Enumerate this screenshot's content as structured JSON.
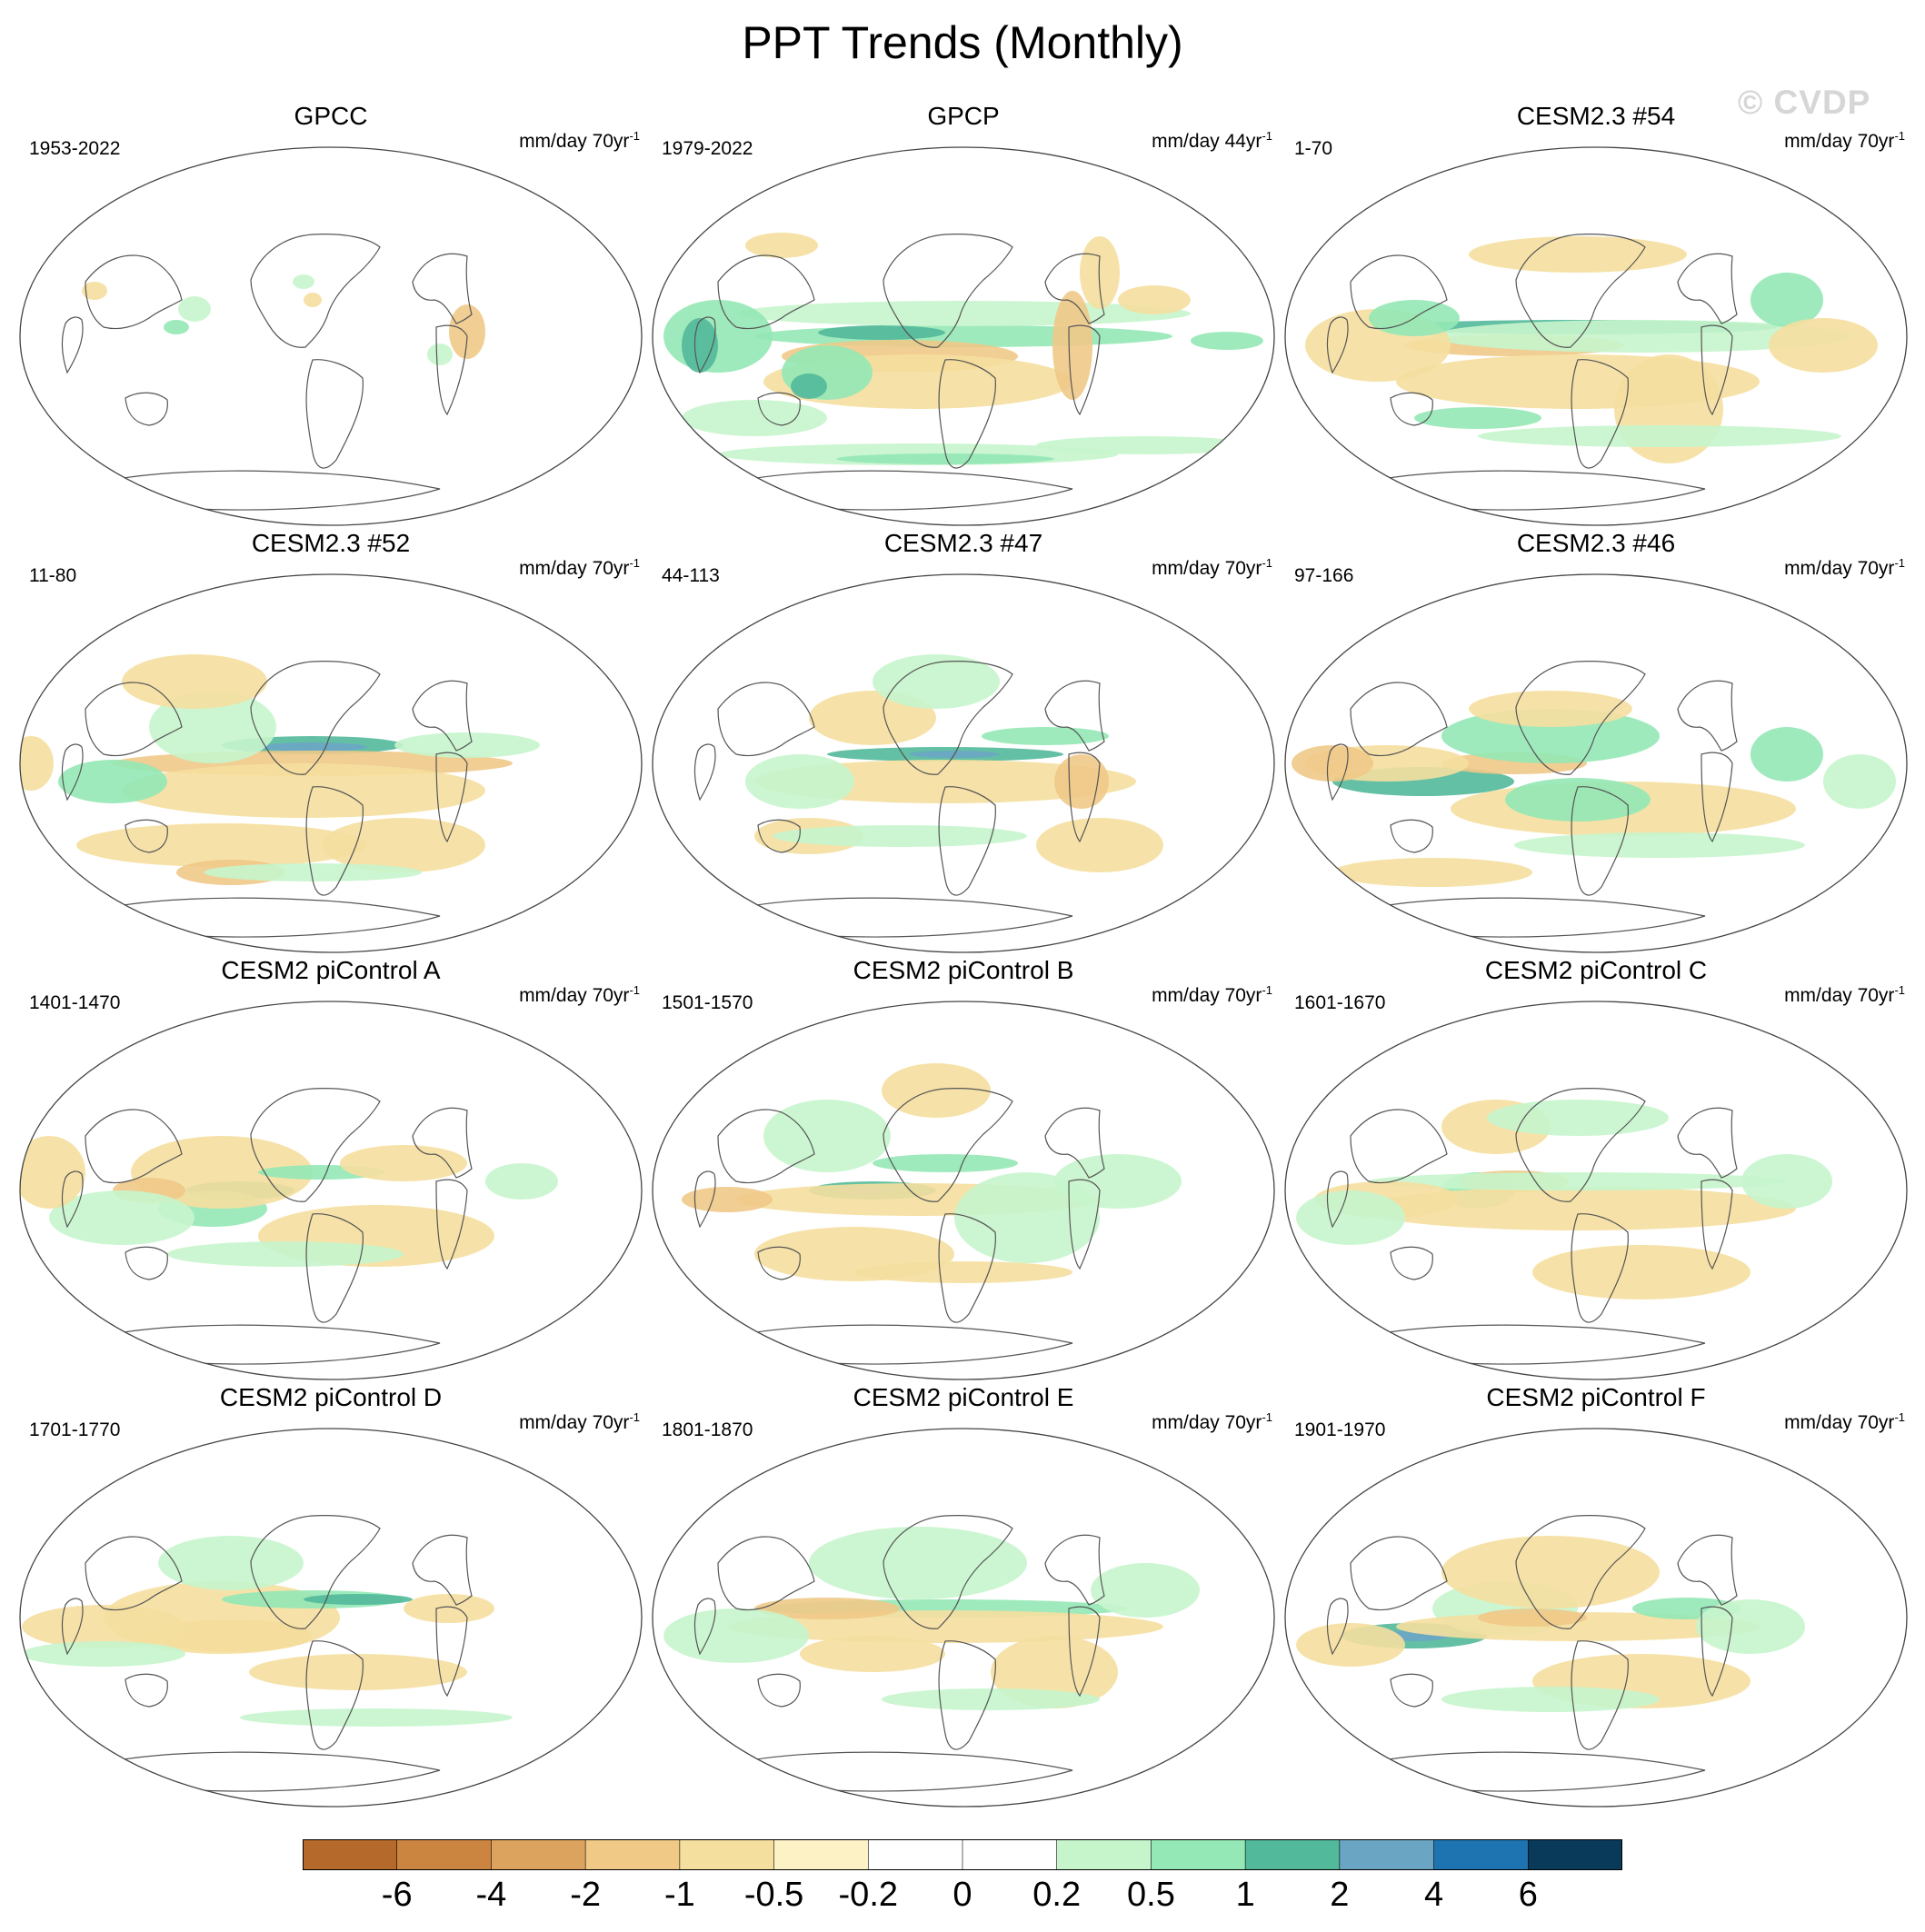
{
  "title": "PPT Trends (Monthly)",
  "watermark": "© CVDP",
  "panels": [
    {
      "title": "GPCC",
      "years": "1953-2022",
      "units": "mm/day 70yr",
      "units_exp": "-1",
      "pattern": "gpcc"
    },
    {
      "title": "GPCP",
      "years": "1979-2022",
      "units": "mm/day 44yr",
      "units_exp": "-1",
      "pattern": "gpcp"
    },
    {
      "title": "CESM2.3 #54",
      "years": "1-70",
      "units": "mm/day 70yr",
      "units_exp": "-1",
      "pattern": "m54"
    },
    {
      "title": "CESM2.3 #52",
      "years": "11-80",
      "units": "mm/day 70yr",
      "units_exp": "-1",
      "pattern": "m52"
    },
    {
      "title": "CESM2.3 #47",
      "years": "44-113",
      "units": "mm/day 70yr",
      "units_exp": "-1",
      "pattern": "m47"
    },
    {
      "title": "CESM2.3 #46",
      "years": "97-166",
      "units": "mm/day 70yr",
      "units_exp": "-1",
      "pattern": "m46"
    },
    {
      "title": "CESM2 piControl A",
      "years": "1401-1470",
      "units": "mm/day 70yr",
      "units_exp": "-1",
      "pattern": "pa"
    },
    {
      "title": "CESM2 piControl B",
      "years": "1501-1570",
      "units": "mm/day 70yr",
      "units_exp": "-1",
      "pattern": "pb"
    },
    {
      "title": "CESM2 piControl C",
      "years": "1601-1670",
      "units": "mm/day 70yr",
      "units_exp": "-1",
      "pattern": "pc"
    },
    {
      "title": "CESM2 piControl D",
      "years": "1701-1770",
      "units": "mm/day 70yr",
      "units_exp": "-1",
      "pattern": "pd"
    },
    {
      "title": "CESM2 piControl E",
      "years": "1801-1870",
      "units": "mm/day 70yr",
      "units_exp": "-1",
      "pattern": "pe"
    },
    {
      "title": "CESM2 piControl F",
      "years": "1901-1970",
      "units": "mm/day 70yr",
      "units_exp": "-1",
      "pattern": "pf"
    }
  ],
  "colorbar": {
    "colors": [
      "#b5692a",
      "#cc8541",
      "#dca35e",
      "#f0c987",
      "#f5df9f",
      "#fcf2c6",
      "#ffffff",
      "#ffffff",
      "#c6f5cc",
      "#93e8b5",
      "#52b99a",
      "#6aa6c4",
      "#1d74b0",
      "#093a5a"
    ],
    "labels": [
      "-6",
      "-4",
      "-2",
      "-1",
      "-0.5",
      "-0.2",
      "0",
      "0.2",
      "0.5",
      "1",
      "2",
      "4",
      "6"
    ]
  }
}
